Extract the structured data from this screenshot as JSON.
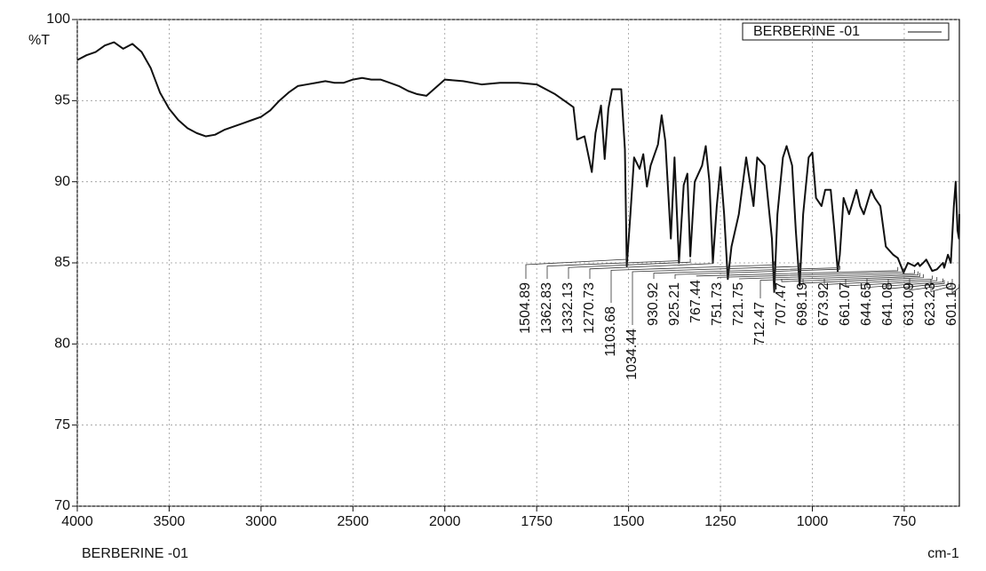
{
  "chart_data": {
    "type": "line",
    "y_label": "%T",
    "x_unit": "cm-1",
    "footer_label": "BERBERINE -01",
    "xlim": [
      4000,
      600
    ],
    "ylim": [
      70,
      100
    ],
    "xticks": [
      4000,
      3500,
      3000,
      2500,
      2000,
      1750,
      1500,
      1250,
      1000,
      750
    ],
    "yticks": [
      70,
      75,
      80,
      85,
      90,
      95,
      100
    ],
    "grid": true,
    "legend": "top-right",
    "x": [
      4000,
      3950,
      3900,
      3850,
      3800,
      3750,
      3700,
      3650,
      3600,
      3550,
      3500,
      3450,
      3400,
      3350,
      3300,
      3250,
      3200,
      3150,
      3100,
      3050,
      3000,
      2950,
      2900,
      2850,
      2800,
      2750,
      2700,
      2650,
      2600,
      2550,
      2500,
      2450,
      2400,
      2350,
      2300,
      2250,
      2200,
      2150,
      2100,
      2050,
      2000,
      1950,
      1900,
      1850,
      1800,
      1750,
      1700,
      1675,
      1650,
      1640,
      1620,
      1600,
      1590,
      1575,
      1565,
      1555,
      1545,
      1520,
      1510,
      1504.89,
      1495,
      1485,
      1470,
      1460,
      1450,
      1440,
      1420,
      1410,
      1400,
      1385,
      1375,
      1362.83,
      1350,
      1340,
      1332.13,
      1320,
      1300,
      1290,
      1280,
      1270.73,
      1260,
      1250,
      1240,
      1230,
      1220,
      1200,
      1180,
      1160,
      1150,
      1130,
      1110,
      1103.68,
      1095,
      1080,
      1070,
      1055,
      1045,
      1034.44,
      1025,
      1010,
      1000,
      990,
      975,
      965,
      950,
      940,
      930.92,
      925.21,
      915,
      900,
      880,
      870,
      860,
      840,
      830,
      815,
      800,
      780,
      767.44,
      751.73,
      740,
      721.75,
      712.47,
      707.47,
      698.19,
      690,
      673.92,
      661.07,
      644.65,
      641.08,
      631.09,
      623.23,
      615,
      610,
      605,
      601.1,
      600
    ],
    "series": [
      {
        "name": "BERBERINE -01",
        "color": "#111111",
        "values": [
          97.5,
          97.8,
          98.0,
          98.4,
          98.6,
          98.2,
          98.5,
          98.0,
          97.0,
          95.5,
          94.5,
          93.8,
          93.3,
          93.0,
          92.8,
          92.9,
          93.2,
          93.4,
          93.6,
          93.8,
          94.0,
          94.4,
          95.0,
          95.5,
          95.9,
          96.0,
          96.1,
          96.2,
          96.1,
          96.1,
          96.3,
          96.4,
          96.3,
          96.3,
          96.1,
          95.9,
          95.6,
          95.4,
          95.3,
          95.8,
          96.3,
          96.2,
          96.0,
          96.1,
          96.1,
          96.0,
          95.4,
          95.0,
          94.6,
          92.6,
          92.8,
          90.6,
          93.0,
          94.7,
          91.4,
          94.5,
          95.7,
          95.7,
          92.0,
          84.8,
          88.0,
          91.5,
          90.8,
          91.7,
          89.7,
          91.0,
          92.3,
          94.1,
          92.5,
          86.5,
          91.5,
          85.0,
          89.8,
          90.5,
          85.4,
          90.0,
          91.0,
          92.2,
          90.0,
          85.0,
          88.5,
          90.9,
          88.0,
          84.0,
          86.0,
          88.0,
          91.5,
          88.5,
          91.5,
          91.0,
          86.5,
          83.2,
          88.0,
          91.5,
          92.2,
          91.0,
          87.0,
          83.6,
          88.0,
          91.5,
          91.8,
          89.0,
          88.5,
          89.5,
          89.5,
          87.0,
          84.5,
          85.5,
          89.0,
          88.0,
          89.5,
          88.5,
          88.0,
          89.5,
          89.0,
          88.5,
          86.0,
          85.5,
          85.3,
          84.4,
          85.0,
          84.8,
          85.0,
          84.8,
          85.0,
          85.2,
          84.5,
          84.6,
          85.0,
          84.7,
          85.5,
          85.0,
          88.5,
          90.0,
          87.0,
          86.5,
          88.0
        ]
      }
    ],
    "peak_labels": [
      1504.89,
      1362.83,
      1332.13,
      1270.73,
      1103.68,
      1034.44,
      930.92,
      925.21,
      767.44,
      751.73,
      721.75,
      712.47,
      707.47,
      698.19,
      673.92,
      661.07,
      644.65,
      641.08,
      631.09,
      623.23,
      {
        "value": 601.1,
        "label": "601.10"
      }
    ]
  }
}
